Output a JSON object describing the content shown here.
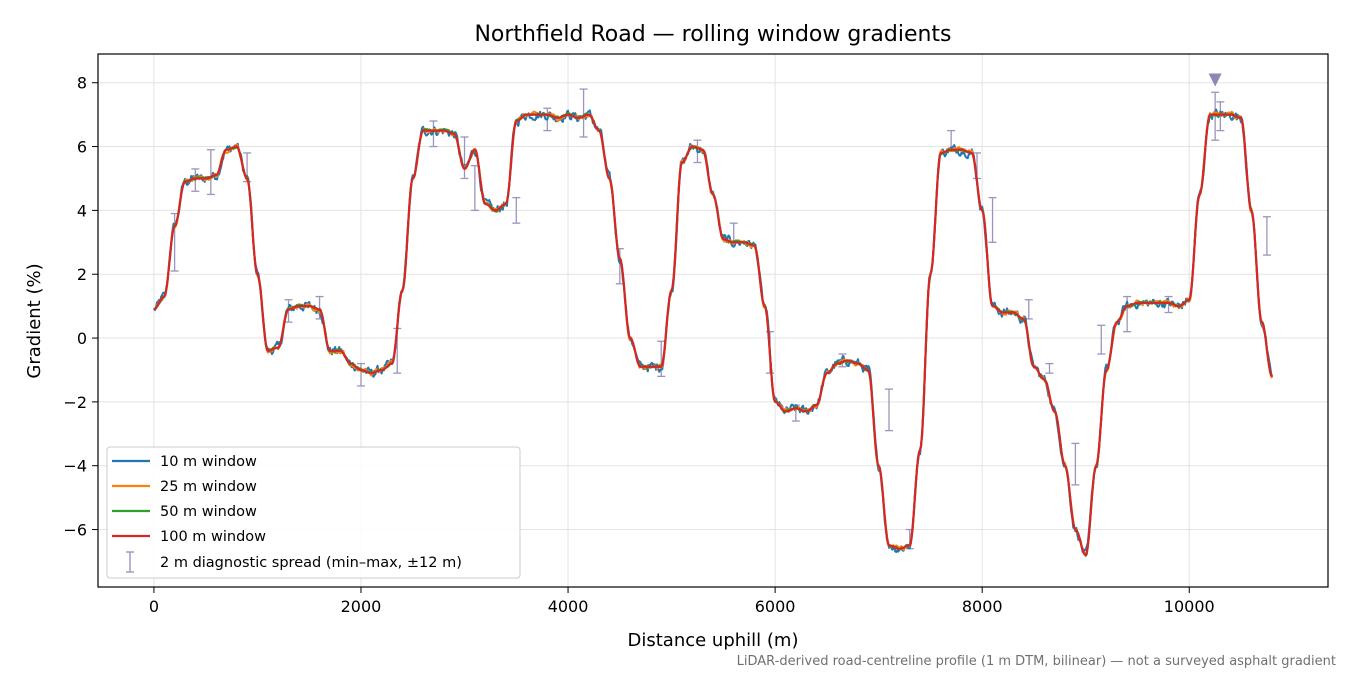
{
  "chart_data": {
    "type": "line",
    "title": "Northfield Road — rolling window gradients",
    "xlabel": "Distance uphill (m)",
    "ylabel": "Gradient (%)",
    "xlim": [
      -540,
      11340
    ],
    "ylim": [
      -7.8,
      8.9
    ],
    "xticks": [
      0,
      2000,
      4000,
      6000,
      8000,
      10000
    ],
    "yticks": [
      -6,
      -4,
      -2,
      0,
      2,
      4,
      6,
      8
    ],
    "grid": true,
    "legend_position": "lower-left",
    "footnote": "LiDAR-derived road-centreline profile (1 m DTM, bilinear) — not a surveyed asphalt gradient",
    "profile": {
      "x": [
        0,
        100,
        200,
        300,
        400,
        500,
        600,
        700,
        800,
        900,
        1000,
        1100,
        1200,
        1300,
        1400,
        1500,
        1600,
        1700,
        1800,
        1900,
        2000,
        2100,
        2200,
        2300,
        2400,
        2500,
        2600,
        2700,
        2800,
        2900,
        3000,
        3100,
        3200,
        3300,
        3400,
        3500,
        3600,
        3700,
        3800,
        3900,
        4000,
        4100,
        4200,
        4300,
        4400,
        4500,
        4600,
        4700,
        4800,
        4900,
        5000,
        5100,
        5200,
        5300,
        5400,
        5500,
        5600,
        5700,
        5800,
        5900,
        6000,
        6100,
        6200,
        6300,
        6400,
        6500,
        6600,
        6700,
        6800,
        6900,
        7000,
        7100,
        7200,
        7300,
        7400,
        7500,
        7600,
        7700,
        7800,
        7900,
        8000,
        8100,
        8200,
        8300,
        8400,
        8500,
        8600,
        8700,
        8800,
        8900,
        9000,
        9100,
        9200,
        9300,
        9400,
        9500,
        9600,
        9700,
        9800,
        9900,
        10000,
        10100,
        10200,
        10300,
        10400,
        10500,
        10600,
        10700,
        10800
      ],
      "y": [
        0.9,
        1.3,
        3.5,
        4.9,
        5.0,
        5.0,
        5.1,
        5.9,
        6.0,
        5.0,
        2.0,
        -0.4,
        -0.3,
        0.9,
        1.0,
        1.0,
        0.9,
        -0.4,
        -0.4,
        -0.8,
        -1.0,
        -1.1,
        -1.0,
        -0.8,
        1.5,
        5.0,
        6.5,
        6.5,
        6.5,
        6.4,
        5.3,
        5.9,
        4.2,
        4.0,
        4.2,
        6.8,
        7.0,
        7.0,
        7.0,
        6.9,
        7.0,
        6.9,
        7.0,
        6.5,
        5.0,
        2.5,
        0.0,
        -0.9,
        -0.9,
        -0.9,
        1.5,
        5.5,
        6.0,
        5.9,
        4.5,
        3.1,
        3.0,
        3.0,
        2.9,
        1.0,
        -2.0,
        -2.3,
        -2.2,
        -2.3,
        -2.1,
        -1.1,
        -0.8,
        -0.7,
        -0.8,
        -1.0,
        -4.0,
        -6.5,
        -6.6,
        -6.5,
        -3.5,
        2.0,
        5.8,
        5.9,
        5.9,
        5.8,
        4.0,
        1.0,
        0.8,
        0.8,
        0.6,
        -0.9,
        -1.3,
        -2.3,
        -4.0,
        -6.0,
        -6.8,
        -4.0,
        -1.0,
        0.5,
        1.0,
        1.1,
        1.1,
        1.1,
        1.1,
        1.0,
        1.2,
        4.5,
        7.0,
        7.0,
        7.0,
        6.9,
        4.0,
        0.5,
        -1.2
      ]
    },
    "series": [
      {
        "name": "10 m window",
        "color": "#1f77b4"
      },
      {
        "name": "25 m window",
        "color": "#ff7f0e"
      },
      {
        "name": "50 m window",
        "color": "#2ca02c"
      },
      {
        "name": "100 m window",
        "color": "#d62728"
      }
    ],
    "spread": {
      "name": "2 m diagnostic spread (min–max, ±12 m)",
      "color": "#9b94bd",
      "bars": [
        {
          "x": 200,
          "low": 2.1,
          "high": 3.9
        },
        {
          "x": 400,
          "low": 4.6,
          "high": 5.3
        },
        {
          "x": 550,
          "low": 4.5,
          "high": 5.9
        },
        {
          "x": 900,
          "low": 4.9,
          "high": 5.8
        },
        {
          "x": 1300,
          "low": 0.5,
          "high": 1.2
        },
        {
          "x": 1600,
          "low": 0.6,
          "high": 1.3
        },
        {
          "x": 2000,
          "low": -1.5,
          "high": -0.8
        },
        {
          "x": 2350,
          "low": -1.1,
          "high": 0.3
        },
        {
          "x": 2700,
          "low": 6.0,
          "high": 6.8
        },
        {
          "x": 3000,
          "low": 5.0,
          "high": 6.3
        },
        {
          "x": 3100,
          "low": 4.0,
          "high": 5.4
        },
        {
          "x": 3500,
          "low": 3.6,
          "high": 4.4
        },
        {
          "x": 3800,
          "low": 6.5,
          "high": 7.2
        },
        {
          "x": 4150,
          "low": 6.3,
          "high": 7.8
        },
        {
          "x": 4500,
          "low": 1.7,
          "high": 2.8
        },
        {
          "x": 4900,
          "low": -1.2,
          "high": -0.1
        },
        {
          "x": 5250,
          "low": 5.5,
          "high": 6.2
        },
        {
          "x": 5600,
          "low": 3.0,
          "high": 3.6
        },
        {
          "x": 5950,
          "low": -1.1,
          "high": 0.2
        },
        {
          "x": 6200,
          "low": -2.6,
          "high": -2.1
        },
        {
          "x": 6650,
          "low": -0.9,
          "high": -0.5
        },
        {
          "x": 7100,
          "low": -2.9,
          "high": -1.6
        },
        {
          "x": 7300,
          "low": -6.6,
          "high": -6.0
        },
        {
          "x": 7700,
          "low": 5.9,
          "high": 6.5
        },
        {
          "x": 7950,
          "low": 5.0,
          "high": 5.8
        },
        {
          "x": 8100,
          "low": 3.0,
          "high": 4.4
        },
        {
          "x": 8450,
          "low": 0.6,
          "high": 1.2
        },
        {
          "x": 8650,
          "low": -1.1,
          "high": -0.8
        },
        {
          "x": 8900,
          "low": -4.6,
          "high": -3.3
        },
        {
          "x": 9150,
          "low": -0.5,
          "high": 0.4
        },
        {
          "x": 9400,
          "low": 0.2,
          "high": 1.3
        },
        {
          "x": 9800,
          "low": 0.8,
          "high": 1.3
        },
        {
          "x": 10250,
          "low": 6.2,
          "high": 7.7
        },
        {
          "x": 10300,
          "low": 6.5,
          "high": 7.4
        },
        {
          "x": 10750,
          "low": 2.6,
          "high": 3.8
        }
      ]
    },
    "marker": {
      "shape": "triangle-down",
      "x": 10250,
      "y": 8.1,
      "color": "#8f86b5"
    }
  }
}
